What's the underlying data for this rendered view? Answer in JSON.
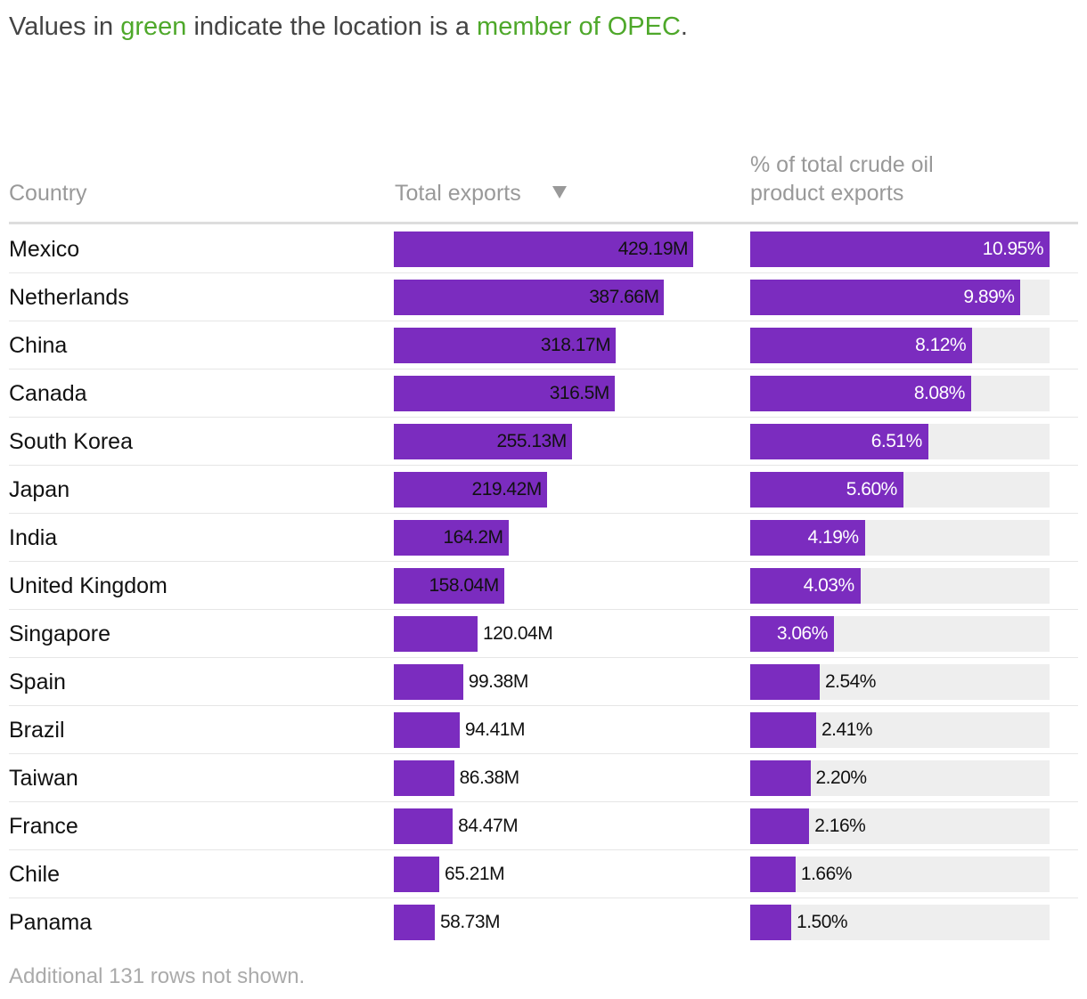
{
  "header": {
    "intro": [
      "Values in ",
      "green",
      " indicate the location is a ",
      "member of OPEC",
      "."
    ]
  },
  "table": {
    "columns": {
      "country": "Country",
      "exports": "Total exports",
      "share": [
        "% of total crude oil",
        "product exports"
      ]
    },
    "rows": [
      {
        "country": "Mexico",
        "exports": 429190000,
        "exports_label": "429.19M",
        "share": 10.95,
        "share_label": "10.95%"
      },
      {
        "country": "Netherlands",
        "exports": 387660000,
        "exports_label": "387.66M",
        "share": 9.89,
        "share_label": "9.89%"
      },
      {
        "country": "China",
        "exports": 318170000,
        "exports_label": "318.17M",
        "share": 8.12,
        "share_label": "8.12%"
      },
      {
        "country": "Canada",
        "exports": 316500000,
        "exports_label": "316.5M",
        "share": 8.08,
        "share_label": "8.08%"
      },
      {
        "country": "South Korea",
        "exports": 255130000,
        "exports_label": "255.13M",
        "share": 6.51,
        "share_label": "6.51%"
      },
      {
        "country": "Japan",
        "exports": 219420000,
        "exports_label": "219.42M",
        "share": 5.6,
        "share_label": "5.60%"
      },
      {
        "country": "India",
        "exports": 164200000,
        "exports_label": "164.2M",
        "share": 4.19,
        "share_label": "4.19%"
      },
      {
        "country": "United Kingdom",
        "exports": 158040000,
        "exports_label": "158.04M",
        "share": 4.03,
        "share_label": "4.03%"
      },
      {
        "country": "Singapore",
        "exports": 120040000,
        "exports_label": "120.04M",
        "share": 3.06,
        "share_label": "3.06%"
      },
      {
        "country": "Spain",
        "exports": 99380000,
        "exports_label": "99.38M",
        "share": 2.54,
        "share_label": "2.54%"
      },
      {
        "country": "Brazil",
        "exports": 94410000,
        "exports_label": "94.41M",
        "share": 2.41,
        "share_label": "2.41%"
      },
      {
        "country": "Taiwan",
        "exports": 86380000,
        "exports_label": "86.38M",
        "share": 2.2,
        "share_label": "2.20%"
      },
      {
        "country": "France",
        "exports": 84470000,
        "exports_label": "84.47M",
        "share": 2.16,
        "share_label": "2.16%"
      },
      {
        "country": "Chile",
        "exports": 65210000,
        "exports_label": "65.21M",
        "share": 1.66,
        "share_label": "1.66%"
      },
      {
        "country": "Panama",
        "exports": 58730000,
        "exports_label": "58.73M",
        "share": 1.5,
        "share_label": "1.50%"
      }
    ],
    "bar_color": "#7b2cbf",
    "opec_color": "#4ea82a"
  },
  "footer": "Additional 131 rows not shown."
}
